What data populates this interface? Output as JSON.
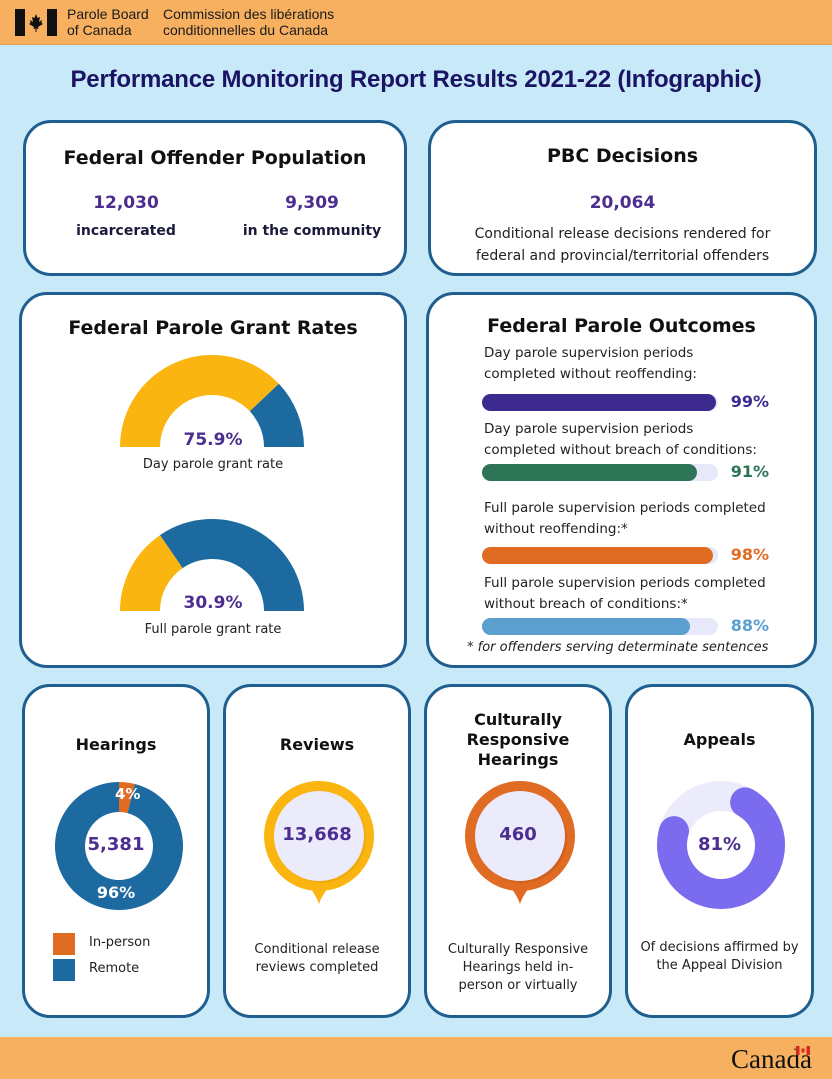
{
  "header": {
    "org_en_line1": "Parole Board",
    "org_en_line2": "of Canada",
    "org_fr_line1": "Commission des libérations",
    "org_fr_line2": "conditionnelles du Canada",
    "flag_icon": "canada-flag-icon"
  },
  "title": "Performance Monitoring Report Results 2021-22 (Infographic)",
  "colors": {
    "background": "#c8e9f8",
    "header_bar": "#f6b060",
    "card_border": "#1f5f8f",
    "title": "#1b1464",
    "accent_purple": "#4b2e8f",
    "gold": "#fbb510",
    "blue": "#1d6aa0",
    "orange": "#e06b23",
    "green": "#2e7557",
    "light_blue": "#5b9fcf",
    "indigo": "#3c2a8e",
    "violet": "#7b6bee",
    "pale_lavender": "#ebebfc"
  },
  "population": {
    "title": "Federal Offender Population",
    "incarcerated_value": "12,030",
    "incarcerated_label": "incarcerated",
    "community_value": "9,309",
    "community_label": "in the community"
  },
  "decisions": {
    "title": "PBC Decisions",
    "value": "20,064",
    "description_line1": "Conditional release decisions rendered for",
    "description_line2": "federal and provincial/territorial offenders"
  },
  "grant_rates": {
    "title": "Federal Parole Grant Rates",
    "gauges": [
      {
        "value_label": "75.9%",
        "caption": "Day parole grant rate"
      },
      {
        "value_label": "30.9%",
        "caption": "Full parole grant rate"
      }
    ]
  },
  "outcomes": {
    "title": "Federal Parole Outcomes",
    "items": [
      {
        "label_line1": "Day parole supervision periods",
        "label_line2": "completed without reoffending:",
        "pct_label": "99%"
      },
      {
        "label_line1": "Day parole supervision periods",
        "label_line2": "completed without breach of conditions:",
        "pct_label": "91%"
      },
      {
        "label_line1": "Full parole supervision periods completed",
        "label_line2": "without reoffending:*",
        "pct_label": "98%"
      },
      {
        "label_line1": "Full parole supervision periods completed",
        "label_line2": "without breach of conditions:*",
        "pct_label": "88%"
      }
    ],
    "footnote": "* for offenders serving determinate sentences"
  },
  "hearings": {
    "title": "Hearings",
    "total": "5,381",
    "inperson_label": "4%",
    "remote_label": "96%",
    "legend": [
      {
        "label": "In-person"
      },
      {
        "label": "Remote"
      }
    ]
  },
  "reviews": {
    "title": "Reviews",
    "value": "13,668",
    "desc_line1": "Conditional release",
    "desc_line2": "reviews completed"
  },
  "crh": {
    "title_line1": "Culturally",
    "title_line2": "Responsive",
    "title_line3": "Hearings",
    "value": "460",
    "desc_line1": "Culturally Responsive",
    "desc_line2": "Hearings held in-",
    "desc_line3": "person or virtually"
  },
  "appeals": {
    "title": "Appeals",
    "value_label": "81%",
    "desc_line1": "Of decisions affirmed by",
    "desc_line2": "the Appeal Division"
  },
  "footer": {
    "wordmark": "Canada"
  },
  "chart_data": [
    {
      "type": "pie",
      "title": "Day parole grant rate",
      "subtype": "half-donut gauge",
      "categories": [
        "Granted",
        "Not granted"
      ],
      "values": [
        75.9,
        24.1
      ],
      "unit": "%"
    },
    {
      "type": "pie",
      "title": "Full parole grant rate",
      "subtype": "half-donut gauge",
      "categories": [
        "Granted",
        "Not granted"
      ],
      "values": [
        30.9,
        69.1
      ],
      "unit": "%"
    },
    {
      "type": "bar",
      "title": "Federal Parole Outcomes",
      "orientation": "horizontal",
      "categories": [
        "Day parole supervision periods completed without reoffending",
        "Day parole supervision periods completed without breach of conditions",
        "Full parole supervision periods completed without reoffending*",
        "Full parole supervision periods completed without breach of conditions*"
      ],
      "values": [
        99,
        91,
        98,
        88
      ],
      "unit": "%",
      "xlim": [
        0,
        100
      ]
    },
    {
      "type": "pie",
      "title": "Hearings",
      "subtype": "donut",
      "center_label": "5,381",
      "categories": [
        "In-person",
        "Remote"
      ],
      "values": [
        4,
        96
      ],
      "unit": "%",
      "legend": "bottom"
    },
    {
      "type": "pie",
      "title": "Appeals",
      "subtype": "donut progress",
      "categories": [
        "Affirmed",
        "Other"
      ],
      "values": [
        81,
        19
      ],
      "unit": "%"
    }
  ]
}
